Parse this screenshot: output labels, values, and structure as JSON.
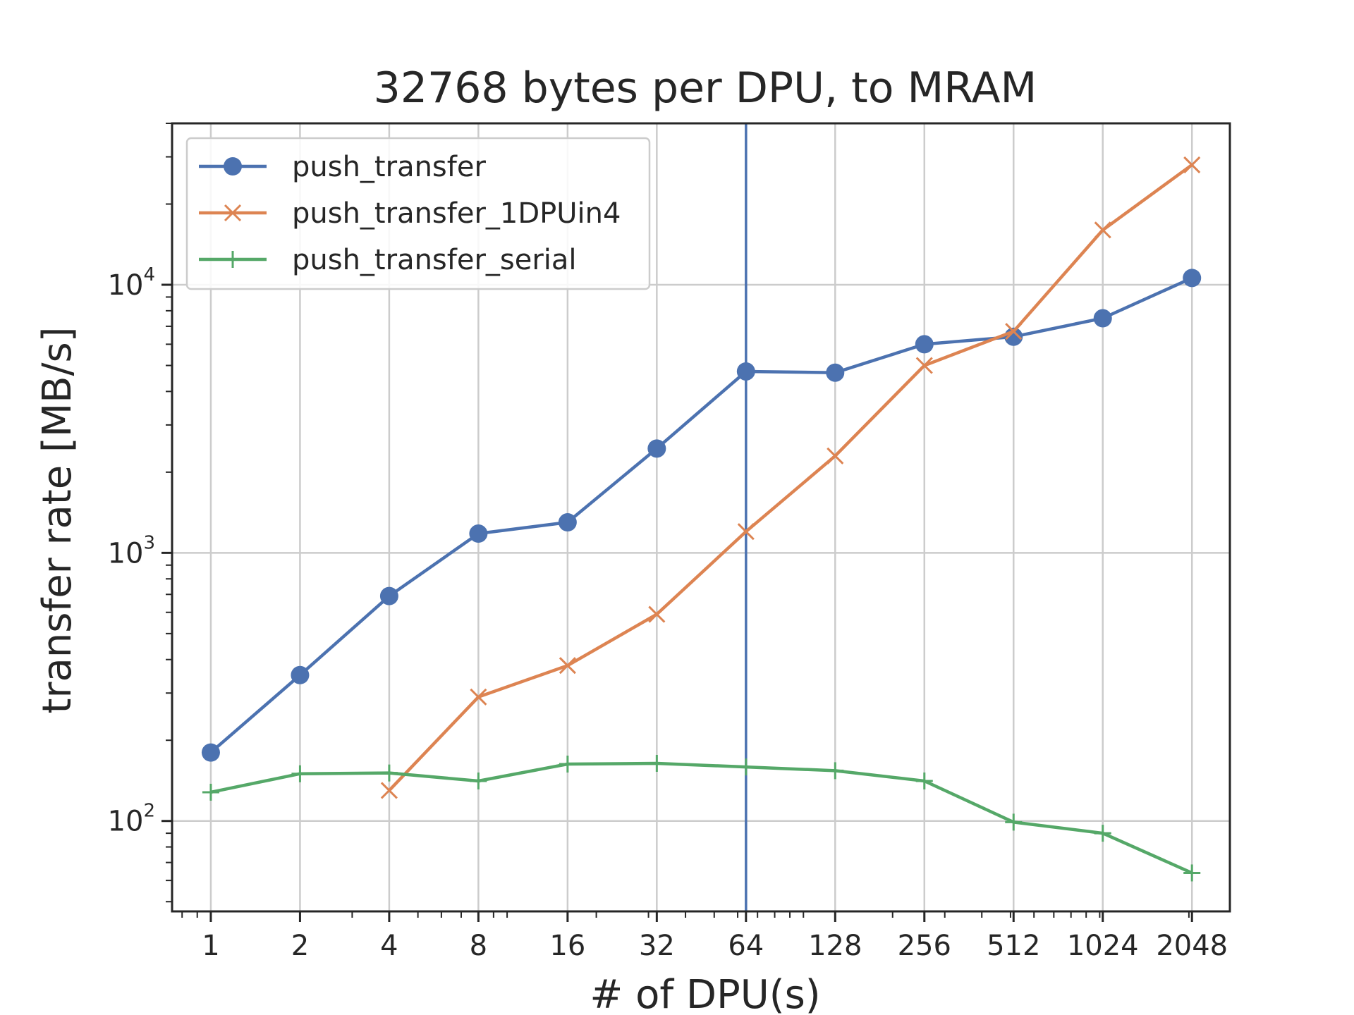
{
  "chart_data": {
    "type": "line",
    "title": "32768 bytes per DPU, to MRAM",
    "xlabel": "# of DPU(s)",
    "ylabel": "transfer rate [MB/s]",
    "x_scale": "log2",
    "y_scale": "log10",
    "xlim": [
      0.74,
      2750
    ],
    "ylim": [
      46,
      40000
    ],
    "x": [
      1,
      2,
      4,
      8,
      16,
      32,
      64,
      128,
      256,
      512,
      1024,
      2048
    ],
    "x_tick_labels": [
      "1",
      "2",
      "4",
      "8",
      "16",
      "32",
      "64",
      "128",
      "256",
      "512",
      "1024",
      "2048"
    ],
    "y_ticks": [
      {
        "value": 100,
        "base": "10",
        "exp": "2"
      },
      {
        "value": 1000,
        "base": "10",
        "exp": "3"
      },
      {
        "value": 10000,
        "base": "10",
        "exp": "4"
      }
    ],
    "vertical_line": {
      "x": 64,
      "color": "#4c72b0"
    },
    "grid": true,
    "legend_position": "top-left",
    "series": [
      {
        "name": "push_transfer",
        "color": "#4c72b0",
        "marker": "circle",
        "values": [
          180,
          350,
          690,
          1180,
          1300,
          2450,
          4750,
          4700,
          6000,
          6400,
          7500,
          10600
        ]
      },
      {
        "name": "push_transfer_1DPUin4",
        "color": "#dd8452",
        "marker": "x",
        "values": [
          null,
          null,
          130,
          290,
          380,
          590,
          1200,
          2300,
          5000,
          6700,
          16000,
          28000
        ]
      },
      {
        "name": "push_transfer_serial",
        "color": "#55a868",
        "marker": "plus",
        "values": [
          128,
          150,
          151,
          141,
          163,
          164,
          159,
          154,
          141,
          99,
          90,
          64
        ]
      }
    ]
  }
}
